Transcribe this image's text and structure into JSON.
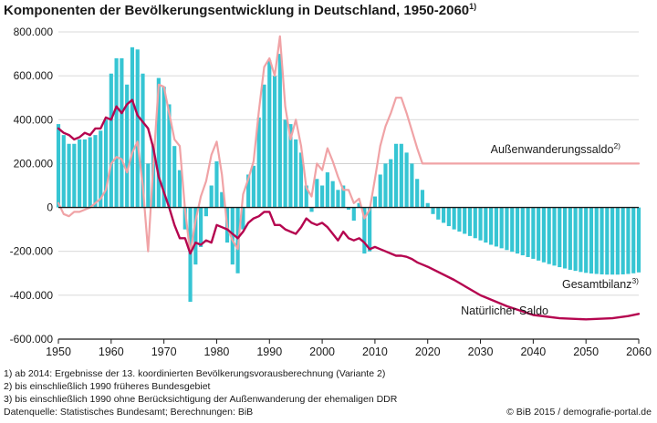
{
  "title": "Komponenten der Bevölkerungsentwicklung in Deutschland, 1950-2060",
  "title_sup": "1)",
  "colors": {
    "bars": "#36c5d3",
    "natural": "#b5054f",
    "migration": "#f0a3a6",
    "axis": "#1a1a1a",
    "grid": "#cccccc"
  },
  "footnotes": [
    "1) ab 2014: Ergebnisse der 13. koordinierten Bevölkerungsvorausberechnung (Variante 2)",
    "2) bis einschließlich 1990 früheres Bundesgebiet",
    "3) bis einschließlich 1990 ohne Berücksichtigung der Außenwanderung der ehemaligen DDR"
  ],
  "source": "Datenquelle: Statistisches Bundesamt; Berechnungen: BiB",
  "copyright": "© BiB 2015 / demografie-portal.de",
  "chart_data": {
    "type": "bar",
    "xlim": [
      1950,
      2060
    ],
    "ylim": [
      -600000,
      800000
    ],
    "grid": true,
    "x_ticks": [
      1950,
      1960,
      1970,
      1980,
      1990,
      2000,
      2010,
      2020,
      2030,
      2040,
      2050,
      2060
    ],
    "y_ticks": [
      {
        "value": 800000,
        "label": "800.000"
      },
      {
        "value": 600000,
        "label": "600.000"
      },
      {
        "value": 400000,
        "label": "400.000"
      },
      {
        "value": 200000,
        "label": "200.000"
      },
      {
        "value": 0,
        "label": "0"
      },
      {
        "value": -200000,
        "label": "-200.000"
      },
      {
        "value": -400000,
        "label": "-400.000"
      },
      {
        "value": -600000,
        "label": "-600.000"
      }
    ],
    "series": [
      {
        "name": "Gesamtbilanz",
        "name_sup": "3)",
        "type": "bar",
        "x": [
          1950,
          1951,
          1952,
          1953,
          1954,
          1955,
          1956,
          1957,
          1958,
          1959,
          1960,
          1961,
          1962,
          1963,
          1964,
          1965,
          1966,
          1967,
          1968,
          1969,
          1970,
          1971,
          1972,
          1973,
          1974,
          1975,
          1976,
          1977,
          1978,
          1979,
          1980,
          1981,
          1982,
          1983,
          1984,
          1985,
          1986,
          1987,
          1988,
          1989,
          1990,
          1991,
          1992,
          1993,
          1994,
          1995,
          1996,
          1997,
          1998,
          1999,
          2000,
          2001,
          2002,
          2003,
          2004,
          2005,
          2006,
          2007,
          2008,
          2009,
          2010,
          2011,
          2012,
          2013,
          2014,
          2015,
          2016,
          2017,
          2018,
          2019,
          2020,
          2021,
          2022,
          2023,
          2024,
          2025,
          2026,
          2027,
          2028,
          2029,
          2030,
          2031,
          2032,
          2033,
          2034,
          2035,
          2036,
          2037,
          2038,
          2039,
          2040,
          2041,
          2042,
          2043,
          2044,
          2045,
          2046,
          2047,
          2048,
          2049,
          2050,
          2051,
          2052,
          2053,
          2054,
          2055,
          2056,
          2057,
          2058,
          2059,
          2060
        ],
        "values": [
          380000,
          330000,
          290000,
          290000,
          310000,
          310000,
          320000,
          330000,
          350000,
          400000,
          610000,
          680000,
          680000,
          560000,
          730000,
          720000,
          610000,
          200000,
          290000,
          590000,
          550000,
          470000,
          280000,
          170000,
          -100000,
          -430000,
          -260000,
          -180000,
          -40000,
          100000,
          210000,
          70000,
          -160000,
          -260000,
          -300000,
          -100000,
          150000,
          190000,
          410000,
          560000,
          670000,
          600000,
          700000,
          400000,
          380000,
          310000,
          250000,
          100000,
          -20000,
          130000,
          100000,
          160000,
          120000,
          80000,
          100000,
          -10000,
          -60000,
          20000,
          -210000,
          -200000,
          50000,
          150000,
          200000,
          220000,
          290000,
          290000,
          250000,
          200000,
          130000,
          80000,
          20000,
          -30000,
          -55000,
          -70000,
          -85000,
          -100000,
          -110000,
          -120000,
          -130000,
          -140000,
          -150000,
          -160000,
          -170000,
          -178000,
          -186000,
          -194000,
          -202000,
          -210000,
          -218000,
          -226000,
          -234000,
          -242000,
          -250000,
          -258000,
          -265000,
          -272000,
          -278000,
          -284000,
          -289000,
          -294000,
          -298000,
          -301000,
          -303000,
          -305000,
          -306000,
          -306000,
          -306000,
          -305000,
          -303000,
          -300000,
          -296000
        ]
      },
      {
        "name": "Außenwanderungssaldo",
        "name_sup": "2)",
        "type": "line",
        "x": [
          1950,
          1951,
          1952,
          1953,
          1954,
          1955,
          1956,
          1957,
          1958,
          1959,
          1960,
          1961,
          1962,
          1963,
          1964,
          1965,
          1966,
          1967,
          1968,
          1969,
          1970,
          1971,
          1972,
          1973,
          1974,
          1975,
          1976,
          1977,
          1978,
          1979,
          1980,
          1981,
          1982,
          1983,
          1984,
          1985,
          1986,
          1987,
          1988,
          1989,
          1990,
          1991,
          1992,
          1993,
          1994,
          1995,
          1996,
          1997,
          1998,
          1999,
          2000,
          2001,
          2002,
          2003,
          2004,
          2005,
          2006,
          2007,
          2008,
          2009,
          2010,
          2011,
          2012,
          2013,
          2014,
          2015,
          2016,
          2017,
          2018,
          2019,
          2020,
          2021,
          2060
        ],
        "values": [
          20000,
          -30000,
          -40000,
          -20000,
          -20000,
          -10000,
          0,
          20000,
          40000,
          80000,
          200000,
          230000,
          220000,
          160000,
          250000,
          300000,
          100000,
          -200000,
          200000,
          560000,
          550000,
          430000,
          310000,
          280000,
          -10000,
          -210000,
          -60000,
          50000,
          120000,
          240000,
          300000,
          150000,
          -90000,
          -150000,
          -190000,
          60000,
          130000,
          210000,
          440000,
          640000,
          680000,
          600000,
          780000,
          460000,
          310000,
          400000,
          280000,
          90000,
          50000,
          200000,
          170000,
          270000,
          210000,
          140000,
          80000,
          80000,
          20000,
          40000,
          -50000,
          -10000,
          130000,
          280000,
          370000,
          430000,
          500000,
          500000,
          430000,
          350000,
          270000,
          200000,
          200000,
          200000,
          200000
        ]
      },
      {
        "name": "Natürlicher Saldo",
        "type": "line",
        "x": [
          1950,
          1951,
          1952,
          1953,
          1954,
          1955,
          1956,
          1957,
          1958,
          1959,
          1960,
          1961,
          1962,
          1963,
          1964,
          1965,
          1966,
          1967,
          1968,
          1969,
          1970,
          1971,
          1972,
          1973,
          1974,
          1975,
          1976,
          1977,
          1978,
          1979,
          1980,
          1981,
          1982,
          1983,
          1984,
          1985,
          1986,
          1987,
          1988,
          1989,
          1990,
          1991,
          1992,
          1993,
          1994,
          1995,
          1996,
          1997,
          1998,
          1999,
          2000,
          2001,
          2002,
          2003,
          2004,
          2005,
          2006,
          2007,
          2008,
          2009,
          2010,
          2011,
          2012,
          2013,
          2014,
          2015,
          2016,
          2017,
          2018,
          2019,
          2020,
          2025,
          2030,
          2035,
          2040,
          2045,
          2050,
          2055,
          2058,
          2060
        ],
        "values": [
          360000,
          340000,
          330000,
          310000,
          320000,
          340000,
          330000,
          360000,
          360000,
          410000,
          400000,
          460000,
          430000,
          470000,
          490000,
          420000,
          390000,
          360000,
          270000,
          140000,
          70000,
          0,
          -80000,
          -140000,
          -140000,
          -210000,
          -160000,
          -170000,
          -150000,
          -160000,
          -80000,
          -90000,
          -100000,
          -120000,
          -140000,
          -110000,
          -70000,
          -50000,
          -40000,
          -20000,
          -20000,
          -80000,
          -80000,
          -100000,
          -110000,
          -120000,
          -90000,
          -50000,
          -70000,
          -80000,
          -70000,
          -90000,
          -120000,
          -150000,
          -110000,
          -140000,
          -150000,
          -140000,
          -160000,
          -190000,
          -180000,
          -190000,
          -200000,
          -210000,
          -220000,
          -220000,
          -225000,
          -235000,
          -250000,
          -260000,
          -270000,
          -330000,
          -400000,
          -450000,
          -490000,
          -505000,
          -510000,
          -505000,
          -495000,
          -485000
        ]
      }
    ]
  }
}
